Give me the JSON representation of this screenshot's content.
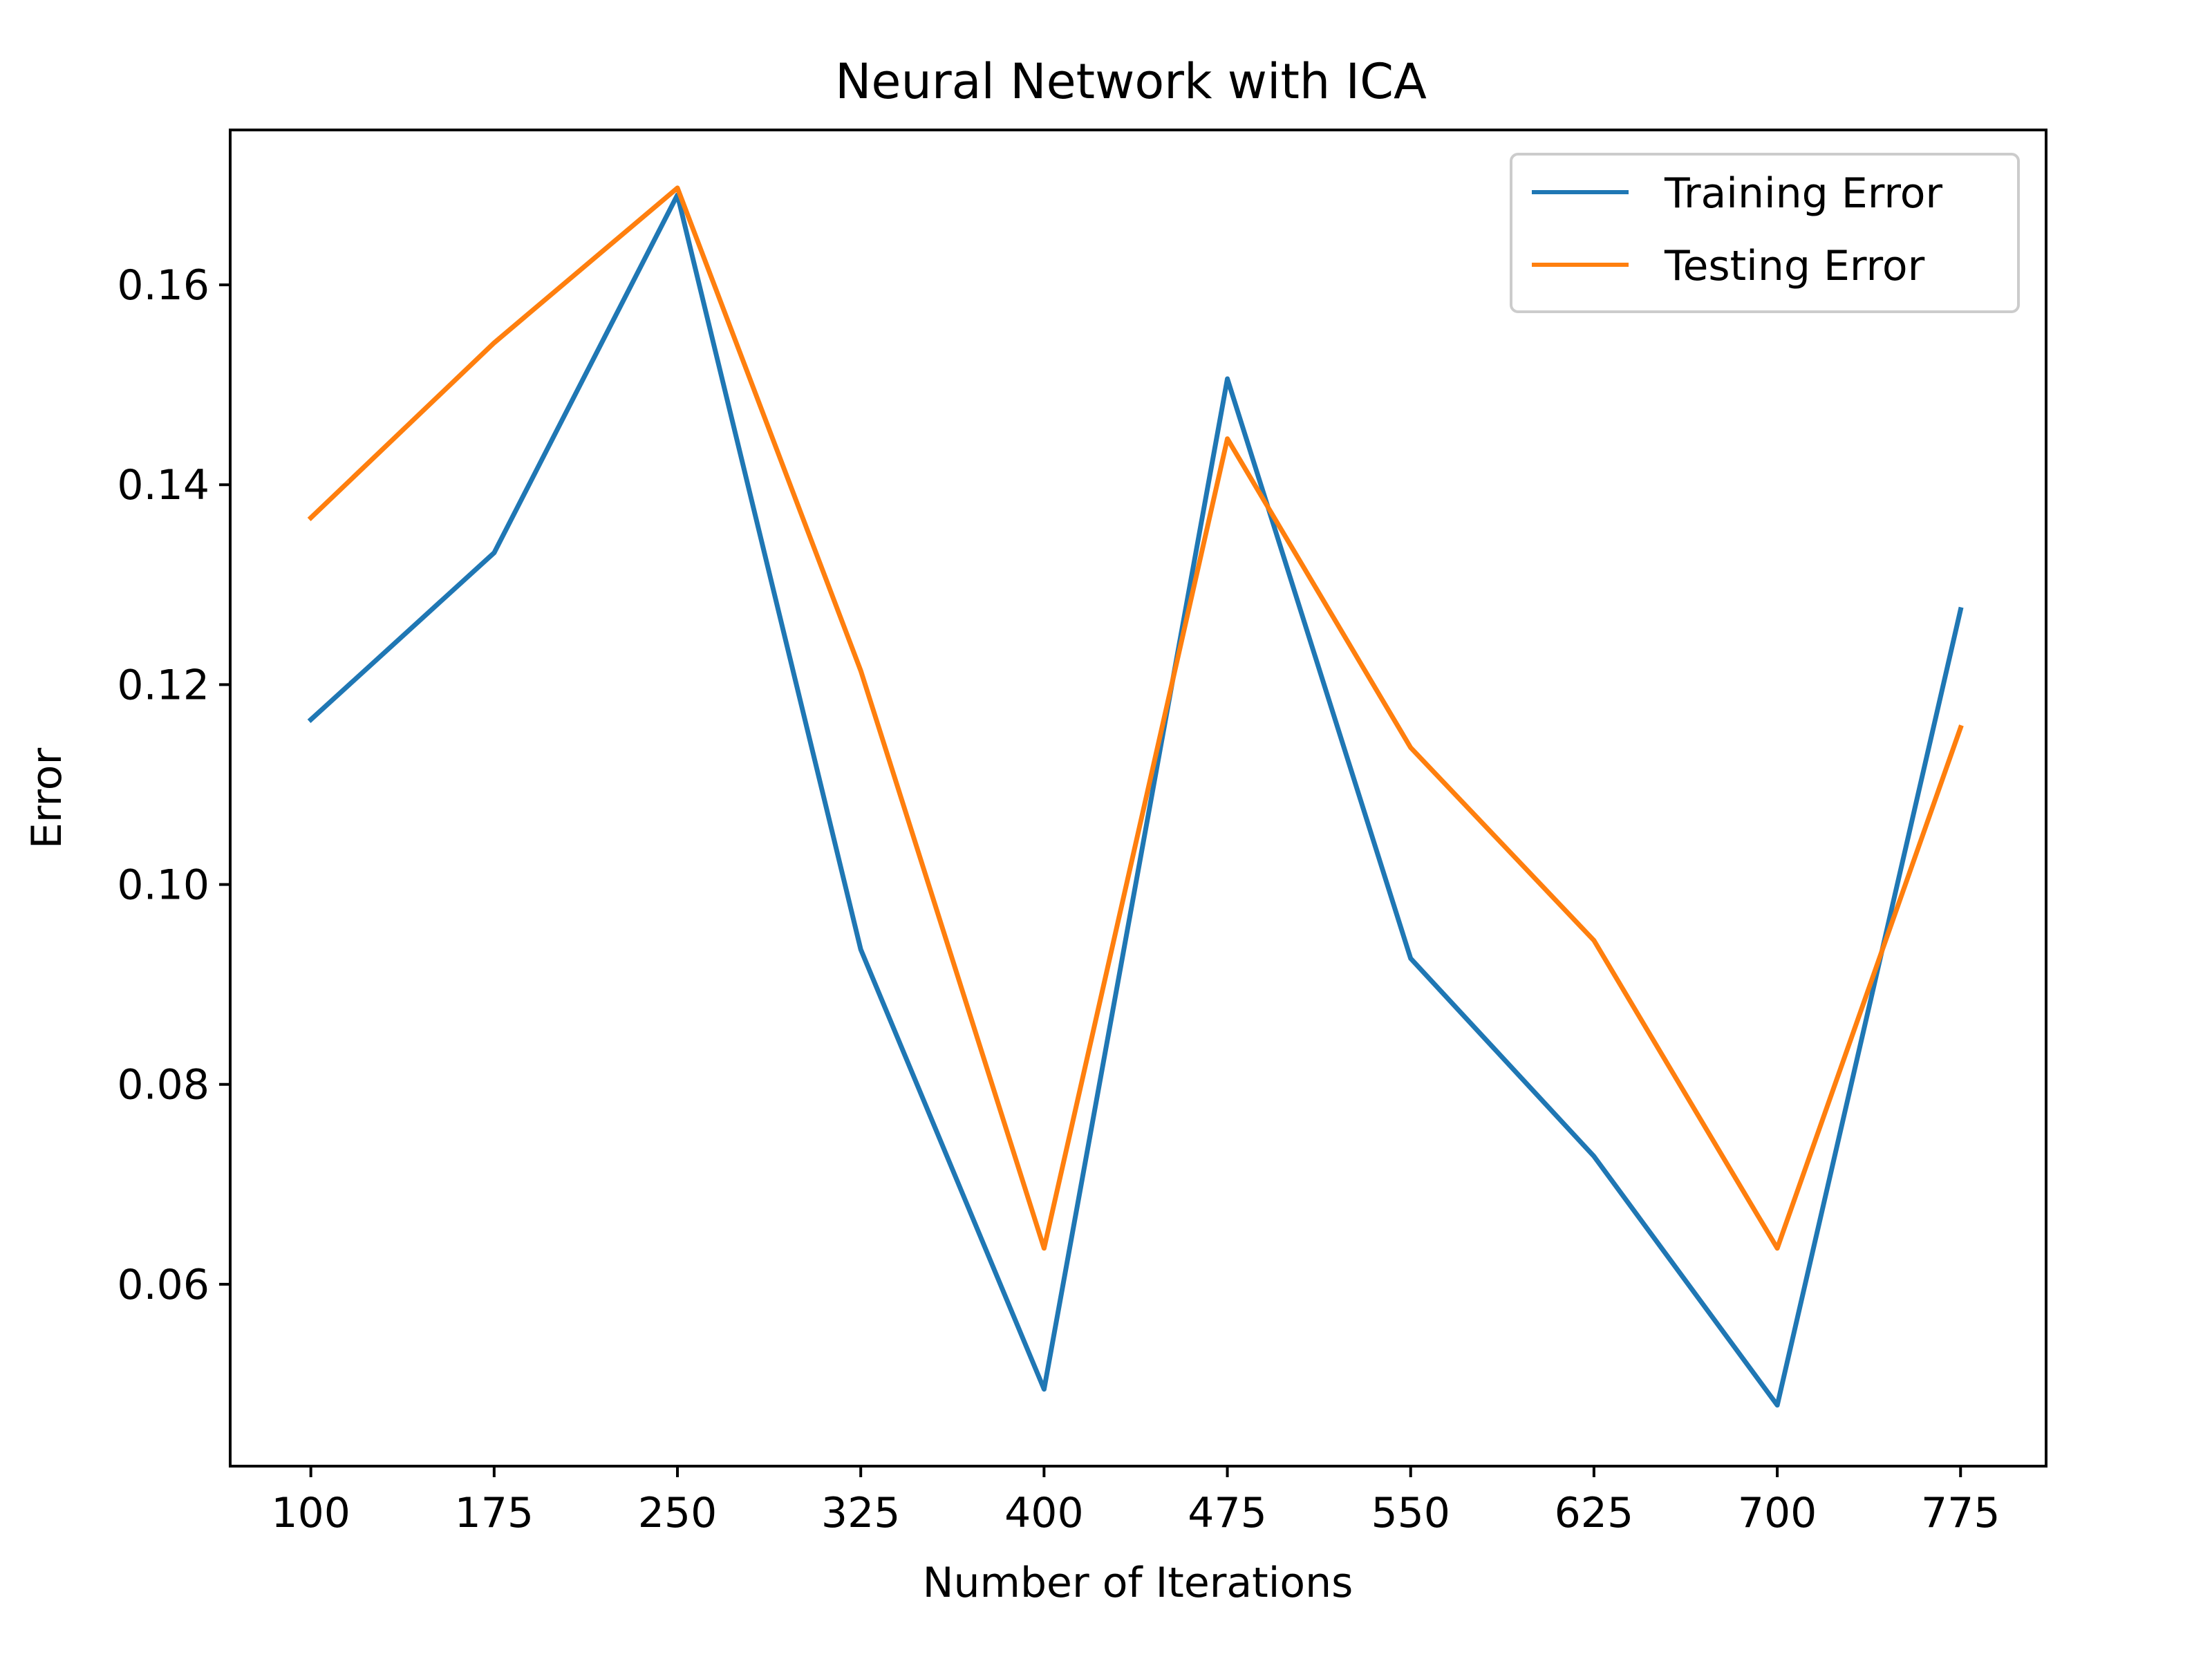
{
  "chart_data": {
    "type": "line",
    "title": "Neural Network with ICA",
    "xlabel": "Number of Iterations",
    "ylabel": "Error",
    "x": [
      100,
      175,
      250,
      325,
      400,
      475,
      550,
      625,
      700,
      775
    ],
    "xticks": [
      "100",
      "175",
      "250",
      "325",
      "400",
      "475",
      "550",
      "625",
      "700",
      "775"
    ],
    "xlim": [
      67,
      810
    ],
    "yticks": [
      "0.06",
      "0.08",
      "0.10",
      "0.12",
      "0.14",
      "0.16"
    ],
    "ytick_values": [
      0.06,
      0.08,
      0.1,
      0.12,
      0.14,
      0.16
    ],
    "ylim": [
      0.0418,
      0.1755
    ],
    "grid": false,
    "legend_position": "top-right",
    "series": [
      {
        "name": "Training Error",
        "color": "#1f77b4",
        "values": [
          0.1165,
          0.1332,
          0.169,
          0.0935,
          0.0495,
          0.1506,
          0.0926,
          0.0728,
          0.0479,
          0.1275
        ]
      },
      {
        "name": "Testing Error",
        "color": "#ff7f0e",
        "values": [
          0.1367,
          0.1542,
          0.1697,
          0.1214,
          0.0636,
          0.1446,
          0.1137,
          0.0944,
          0.0636,
          0.1157
        ]
      }
    ]
  }
}
